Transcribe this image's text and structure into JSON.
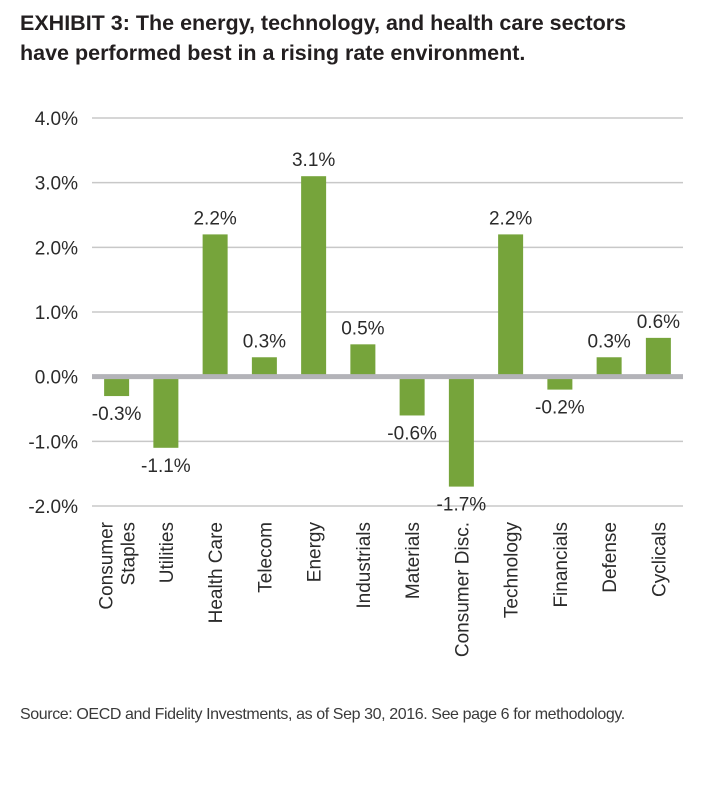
{
  "title_lines": [
    "EXHIBIT 3: The energy, technology, and health care sectors",
    "have performed best in a rising rate environment."
  ],
  "source": "Source: OECD and Fidelity Investments, as of Sep 30, 2016. See page 6 for methodology.",
  "colors": {
    "bar": "#76a43b",
    "grid": "#c8c8c8",
    "zero_line": "#b3b3b8",
    "text": "#2b2b2b"
  },
  "chart_data": {
    "type": "bar",
    "title": "EXHIBIT 3: The energy, technology, and health care sectors have performed best in a rising rate environment.",
    "xlabel": "",
    "ylabel": "",
    "categories": [
      [
        "Consumer",
        "Staples"
      ],
      [
        "Utilities"
      ],
      [
        "Health Care"
      ],
      [
        "Telecom"
      ],
      [
        "Energy"
      ],
      [
        "Industrials"
      ],
      [
        "Materials"
      ],
      [
        "Consumer Disc."
      ],
      [
        "Technology"
      ],
      [
        "Financials"
      ],
      [
        "Defense"
      ],
      [
        "Cyclicals"
      ]
    ],
    "values": [
      -0.3,
      -1.1,
      2.2,
      0.3,
      3.1,
      0.5,
      -0.6,
      -1.7,
      2.2,
      -0.2,
      0.3,
      0.6
    ],
    "data_labels": [
      "-0.3%",
      "-1.1%",
      "2.2%",
      "0.3%",
      "3.1%",
      "0.5%",
      "-0.6%",
      "-1.7%",
      "2.2%",
      "-0.2%",
      "0.3%",
      "0.6%"
    ],
    "ylim": [
      -2.0,
      4.0
    ],
    "yticks": [
      4.0,
      3.0,
      2.0,
      1.0,
      0.0,
      -1.0,
      -2.0
    ],
    "ytick_labels": [
      "4.0%",
      "3.0%",
      "2.0%",
      "1.0%",
      "0.0%",
      "-1.0%",
      "-2.0%"
    ],
    "grid": "horizontal",
    "legend": "none",
    "x_tick_rotation": "vertical"
  }
}
